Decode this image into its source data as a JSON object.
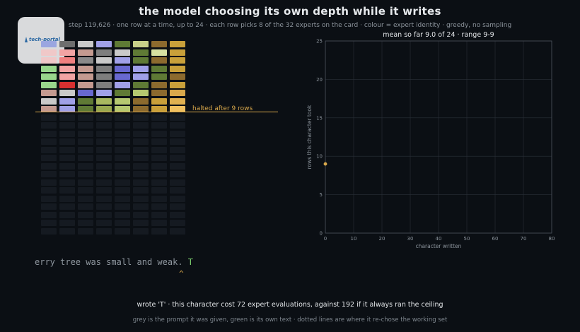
{
  "header": {
    "title": "the model choosing its own depth while it writes",
    "subtitle": "step 119,626  ·  one row at a time, up to 24  ·  each row picks 8 of the 32 experts on the card  ·  colour = expert identity  ·  greedy, no sampling"
  },
  "logo": {
    "text": "tech-portal"
  },
  "grid": {
    "halt_label": "halted after 9 rows",
    "rows_total": 24,
    "cols": 8,
    "rows": [
      [
        "#9aa6e0",
        "#6e6e6e",
        "#c9c9c9",
        "#a0a0e8",
        "#5f7a35",
        "#c8d08a",
        "#8c6a2e",
        "#c9a03a"
      ],
      [
        "#f0c8c8",
        "#f2a3a3",
        "#c49a90",
        "#7e7e7e",
        "#c9c9c9",
        "#5f7a35",
        "#d8e0a0",
        "#c9a03a"
      ],
      [
        "#f0c8c8",
        "#f08080",
        "#8a8a8a",
        "#c9c9c9",
        "#a0a0e8",
        "#5f7a35",
        "#8c6a2e",
        "#c9a03a"
      ],
      [
        "#99d68c",
        "#f2a3a3",
        "#c49a90",
        "#7e7e7e",
        "#6868d0",
        "#a0a0e8",
        "#5f7a35",
        "#c9a03a"
      ],
      [
        "#99d68c",
        "#f2a3a3",
        "#c49a90",
        "#7e7e7e",
        "#6868d0",
        "#a0a0e8",
        "#5f7a35",
        "#8c6a2e"
      ],
      [
        "#99d68c",
        "#d83030",
        "#c49a90",
        "#7e7e7e",
        "#a0a0e8",
        "#5f7a35",
        "#8c6a2e",
        "#c9a03a"
      ],
      [
        "#c49a90",
        "#c9c9c9",
        "#6868d0",
        "#a0a0e8",
        "#5f7a35",
        "#b5c870",
        "#8c6a2e",
        "#d9a84b"
      ],
      [
        "#c9c9c9",
        "#a0a0e8",
        "#5f7a35",
        "#a8b860",
        "#b5c870",
        "#8c6a2e",
        "#c9a03a",
        "#e0b050"
      ],
      [
        "#c49a90",
        "#a0a0e8",
        "#5f7a35",
        "#98a850",
        "#b5c870",
        "#8c6a2e",
        "#c9a03a",
        "#f0c060"
      ]
    ]
  },
  "text": {
    "prompt": "erry tree was small and weak. ",
    "generated": "T",
    "caret": "^"
  },
  "footer": {
    "line1": "wrote 'T'   ·   this character cost 72 expert evaluations, against 192 if it always ran the ceiling",
    "line2": "grey is the prompt it was given, green is its own text  ·  dotted lines are where it re-chose the working set"
  },
  "colors": {
    "background": "#0b0f14",
    "halt": "#d9a84b",
    "generated_text": "#7bcf6d",
    "prompt_text": "#8d959d"
  },
  "chart_data": {
    "type": "scatter",
    "title": "mean so far 9.0 of 24  ·  range 9-9",
    "xlabel": "character written",
    "ylabel": "rows this character took",
    "xlim": [
      0,
      80
    ],
    "ylim": [
      0,
      25
    ],
    "xticks": [
      0,
      10,
      20,
      30,
      40,
      50,
      60,
      70,
      80
    ],
    "yticks": [
      0,
      5,
      10,
      15,
      20,
      25
    ],
    "grid": true,
    "points": [
      {
        "x": 0,
        "y": 9
      }
    ],
    "point_color": "#d9a84b"
  }
}
